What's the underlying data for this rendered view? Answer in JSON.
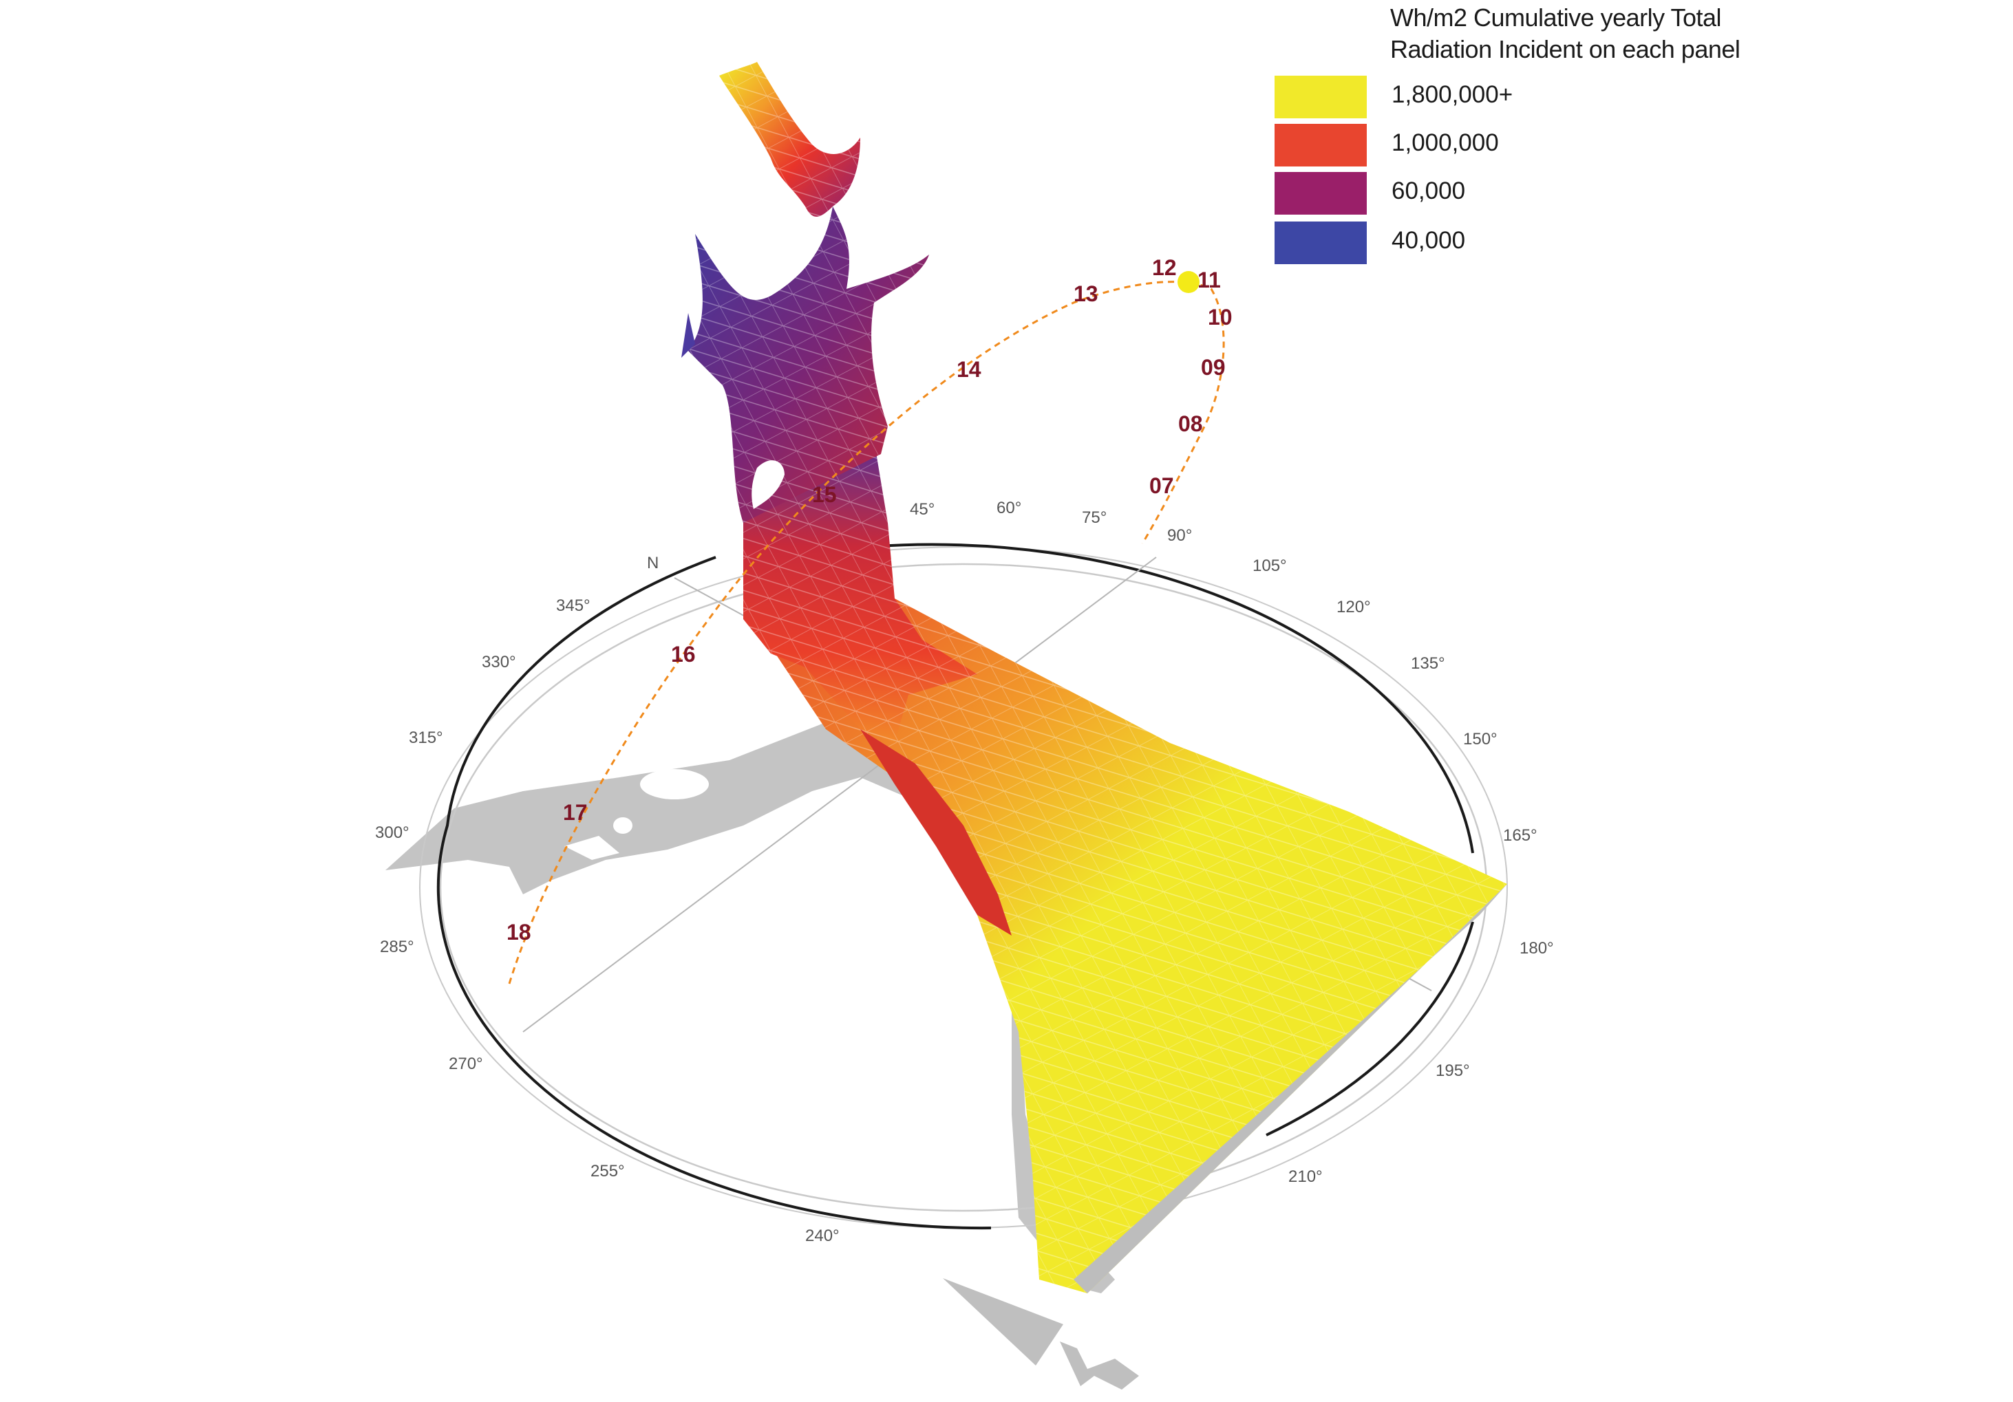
{
  "legend": {
    "title_line1": "Wh/m2 Cumulative yearly Total",
    "title_line2": "Radiation Incident on each panel",
    "items": [
      {
        "label": "1,800,000+",
        "color": "#f1e92a"
      },
      {
        "label": "1,000,000",
        "color": "#e8452f"
      },
      {
        "label": "60,000",
        "color": "#9a1f69"
      },
      {
        "label": "40,000",
        "color": "#3d47a5"
      }
    ]
  },
  "compass": {
    "north_label": "N",
    "degree_labels": [
      "45°",
      "60°",
      "75°",
      "90°",
      "105°",
      "120°",
      "135°",
      "150°",
      "165°",
      "180°",
      "195°",
      "210°",
      "240°",
      "255°",
      "270°",
      "285°",
      "300°",
      "315°",
      "330°",
      "345°"
    ]
  },
  "sun_path": {
    "hours": [
      "07",
      "08",
      "09",
      "10",
      "11",
      "12",
      "13",
      "14",
      "15",
      "16",
      "17",
      "18"
    ],
    "sun_color": "#f3ea18",
    "hour_color": "#7d1426",
    "path_color": "#f08a1c"
  },
  "surface_colors": {
    "yellow": "#f1e92a",
    "orange": "#f29a2a",
    "red": "#e8342a",
    "purple": "#8b2270",
    "blue": "#3d3aa0",
    "shadow": "#c4c4c4"
  }
}
